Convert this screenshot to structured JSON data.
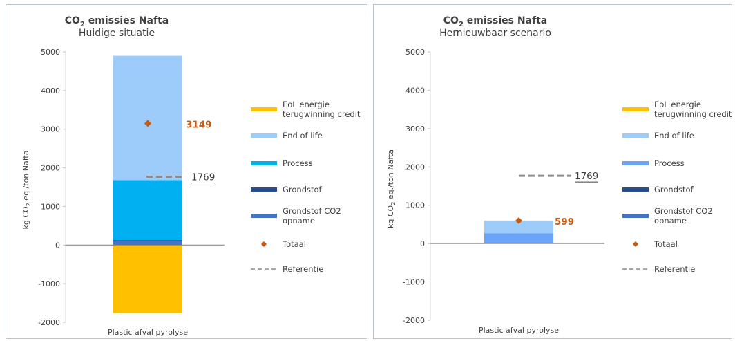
{
  "charts": [
    {
      "title_main": "CO",
      "title_sub2": "2",
      "title_rest": " emissies Nafta",
      "subtitle": "Huidige situatie"
    },
    {
      "title_main": "CO",
      "title_sub2": "2",
      "title_rest": " emissies Nafta",
      "subtitle": "Hernieuwbaar scenario"
    }
  ],
  "chart_data": [
    {
      "type": "bar",
      "stacked": true,
      "title": "CO2 emissies Nafta",
      "subtitle": "Huidige situatie",
      "categories": [
        "Plastic afval pyrolyse"
      ],
      "ylabel": "kg CO2 eq./ton Nafta",
      "ylim": [
        -2000,
        5000
      ],
      "yticks": [
        -2000,
        -1000,
        0,
        1000,
        2000,
        3000,
        4000,
        5000
      ],
      "series": [
        {
          "name": "EoL energie terugwinning credit",
          "color": "#FFC000",
          "values": [
            -1760
          ]
        },
        {
          "name": "End of life",
          "color": "#9DCBFA",
          "values": [
            3220
          ]
        },
        {
          "name": "Process",
          "color": "#00B0F0",
          "values": [
            1550
          ]
        },
        {
          "name": "Grondstof",
          "color": "#274F8F",
          "values": [
            20
          ]
        },
        {
          "name": "Grondstof CO2 opname",
          "color": "#4472C4",
          "values": [
            110
          ]
        }
      ],
      "total": {
        "name": "Totaal",
        "value": 3149,
        "label": "3149",
        "color": "#C55A11"
      },
      "reference": {
        "name": "Referentie",
        "value": 1769,
        "label": "1769",
        "color": "#8C8C8C"
      },
      "legend_position": "right"
    },
    {
      "type": "bar",
      "stacked": true,
      "title": "CO2 emissies Nafta",
      "subtitle": "Hernieuwbaar scenario",
      "categories": [
        "Plastic afval pyrolyse"
      ],
      "ylabel": "kg CO2 eq./ton Nafta",
      "ylim": [
        -2000,
        5000
      ],
      "yticks": [
        -2000,
        -1000,
        0,
        1000,
        2000,
        3000,
        4000,
        5000
      ],
      "series": [
        {
          "name": "EoL energie terugwinning credit",
          "color": "#FFC000",
          "values": [
            0
          ]
        },
        {
          "name": "End of life",
          "color": "#9DCBFA",
          "values": [
            330
          ]
        },
        {
          "name": "Process",
          "color": "#6AA3F8",
          "values": [
            250
          ]
        },
        {
          "name": "Grondstof",
          "color": "#274F8F",
          "values": [
            10
          ]
        },
        {
          "name": "Grondstof CO2 opname",
          "color": "#4472C4",
          "values": [
            10
          ]
        }
      ],
      "total": {
        "name": "Totaal",
        "value": 599,
        "label": "599",
        "color": "#C55A11"
      },
      "reference": {
        "name": "Referentie",
        "value": 1769,
        "label": "1769",
        "color": "#8C8C8C"
      },
      "legend_position": "right"
    }
  ]
}
